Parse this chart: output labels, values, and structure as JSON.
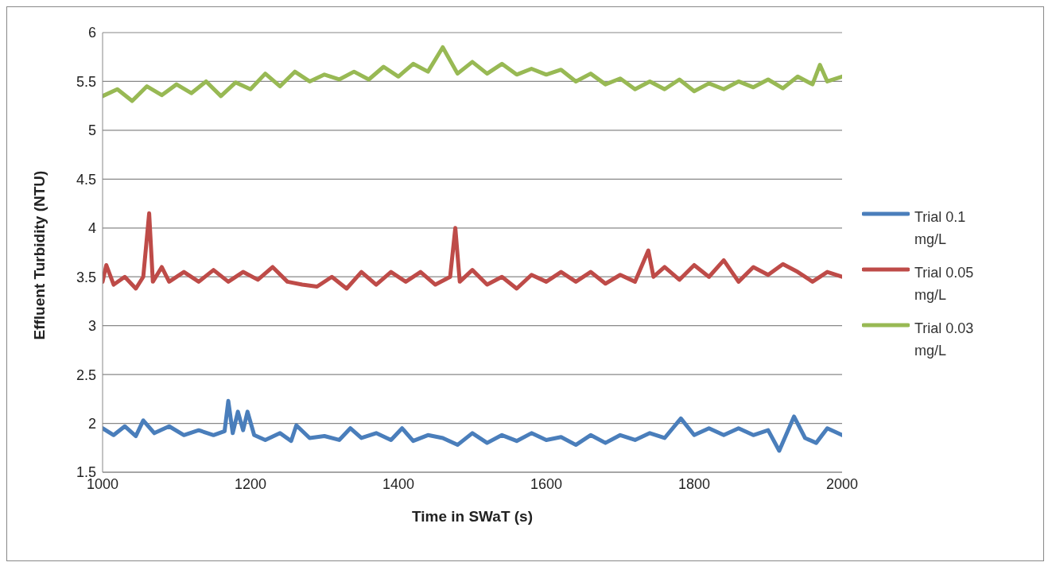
{
  "chart_data": {
    "type": "line",
    "xlabel": "Time in SWaT (s)",
    "ylabel": "Effluent Turbidity (NTU)",
    "xlim": [
      1000,
      2000
    ],
    "xticks": [
      1000,
      1200,
      1400,
      1600,
      1800,
      2000
    ],
    "ylim": [
      1.5,
      6
    ],
    "yticks": [
      1.5,
      2,
      2.5,
      3,
      3.5,
      4,
      4.5,
      5,
      5.5,
      6
    ],
    "grid": "y",
    "legend": "right",
    "marker": "none",
    "line_style": "solid",
    "series": [
      {
        "name": "Trial 0.1 mg/L",
        "color": "#4a7ebb",
        "x": [
          1000,
          1015,
          1030,
          1045,
          1055,
          1070,
          1090,
          1110,
          1130,
          1150,
          1165,
          1170,
          1176,
          1183,
          1190,
          1196,
          1205,
          1220,
          1240,
          1255,
          1262,
          1280,
          1300,
          1320,
          1335,
          1350,
          1370,
          1390,
          1405,
          1420,
          1440,
          1460,
          1480,
          1500,
          1520,
          1540,
          1560,
          1580,
          1600,
          1620,
          1640,
          1660,
          1680,
          1700,
          1720,
          1740,
          1760,
          1782,
          1800,
          1820,
          1840,
          1860,
          1880,
          1900,
          1915,
          1935,
          1950,
          1965,
          1980,
          2000
        ],
        "values": [
          1.95,
          1.88,
          1.97,
          1.87,
          2.03,
          1.9,
          1.97,
          1.88,
          1.93,
          1.88,
          1.92,
          2.23,
          1.9,
          2.12,
          1.93,
          2.12,
          1.88,
          1.83,
          1.9,
          1.82,
          1.98,
          1.85,
          1.87,
          1.83,
          1.95,
          1.85,
          1.9,
          1.83,
          1.95,
          1.82,
          1.88,
          1.85,
          1.78,
          1.9,
          1.8,
          1.88,
          1.82,
          1.9,
          1.83,
          1.86,
          1.78,
          1.88,
          1.8,
          1.88,
          1.83,
          1.9,
          1.85,
          2.05,
          1.88,
          1.95,
          1.88,
          1.95,
          1.88,
          1.93,
          1.72,
          2.07,
          1.85,
          1.8,
          1.95,
          1.88
        ]
      },
      {
        "name": "Trial 0.05 mg/L",
        "color": "#be4b48",
        "x": [
          1000,
          1005,
          1015,
          1030,
          1045,
          1055,
          1063,
          1068,
          1080,
          1090,
          1110,
          1130,
          1150,
          1170,
          1190,
          1210,
          1230,
          1250,
          1270,
          1290,
          1310,
          1330,
          1350,
          1370,
          1390,
          1410,
          1430,
          1450,
          1470,
          1477,
          1483,
          1500,
          1520,
          1540,
          1560,
          1580,
          1600,
          1620,
          1640,
          1660,
          1680,
          1700,
          1720,
          1738,
          1745,
          1760,
          1780,
          1800,
          1820,
          1840,
          1860,
          1880,
          1900,
          1920,
          1940,
          1960,
          1980,
          2000
        ],
        "values": [
          3.45,
          3.62,
          3.42,
          3.5,
          3.38,
          3.5,
          4.15,
          3.45,
          3.6,
          3.45,
          3.55,
          3.45,
          3.57,
          3.45,
          3.55,
          3.47,
          3.6,
          3.45,
          3.42,
          3.4,
          3.5,
          3.38,
          3.55,
          3.42,
          3.55,
          3.45,
          3.55,
          3.42,
          3.5,
          4.0,
          3.45,
          3.57,
          3.42,
          3.5,
          3.38,
          3.52,
          3.45,
          3.55,
          3.45,
          3.55,
          3.43,
          3.52,
          3.45,
          3.77,
          3.5,
          3.6,
          3.47,
          3.62,
          3.5,
          3.67,
          3.45,
          3.6,
          3.52,
          3.63,
          3.55,
          3.45,
          3.55,
          3.5
        ]
      },
      {
        "name": "Trial 0.03 mg/L",
        "color": "#98b954",
        "x": [
          1000,
          1020,
          1040,
          1060,
          1080,
          1100,
          1120,
          1140,
          1160,
          1180,
          1200,
          1220,
          1240,
          1260,
          1280,
          1300,
          1320,
          1340,
          1360,
          1380,
          1400,
          1420,
          1440,
          1460,
          1480,
          1500,
          1520,
          1540,
          1560,
          1580,
          1600,
          1620,
          1640,
          1660,
          1680,
          1700,
          1720,
          1740,
          1760,
          1780,
          1800,
          1820,
          1840,
          1860,
          1880,
          1900,
          1920,
          1940,
          1960,
          1970,
          1980,
          2000
        ],
        "values": [
          5.35,
          5.42,
          5.3,
          5.45,
          5.36,
          5.47,
          5.38,
          5.5,
          5.35,
          5.49,
          5.42,
          5.58,
          5.45,
          5.6,
          5.5,
          5.57,
          5.52,
          5.6,
          5.52,
          5.65,
          5.55,
          5.68,
          5.6,
          5.85,
          5.58,
          5.7,
          5.58,
          5.68,
          5.57,
          5.63,
          5.57,
          5.62,
          5.5,
          5.58,
          5.47,
          5.53,
          5.42,
          5.5,
          5.42,
          5.52,
          5.4,
          5.48,
          5.42,
          5.5,
          5.44,
          5.52,
          5.43,
          5.55,
          5.47,
          5.67,
          5.5,
          5.55
        ]
      }
    ]
  }
}
